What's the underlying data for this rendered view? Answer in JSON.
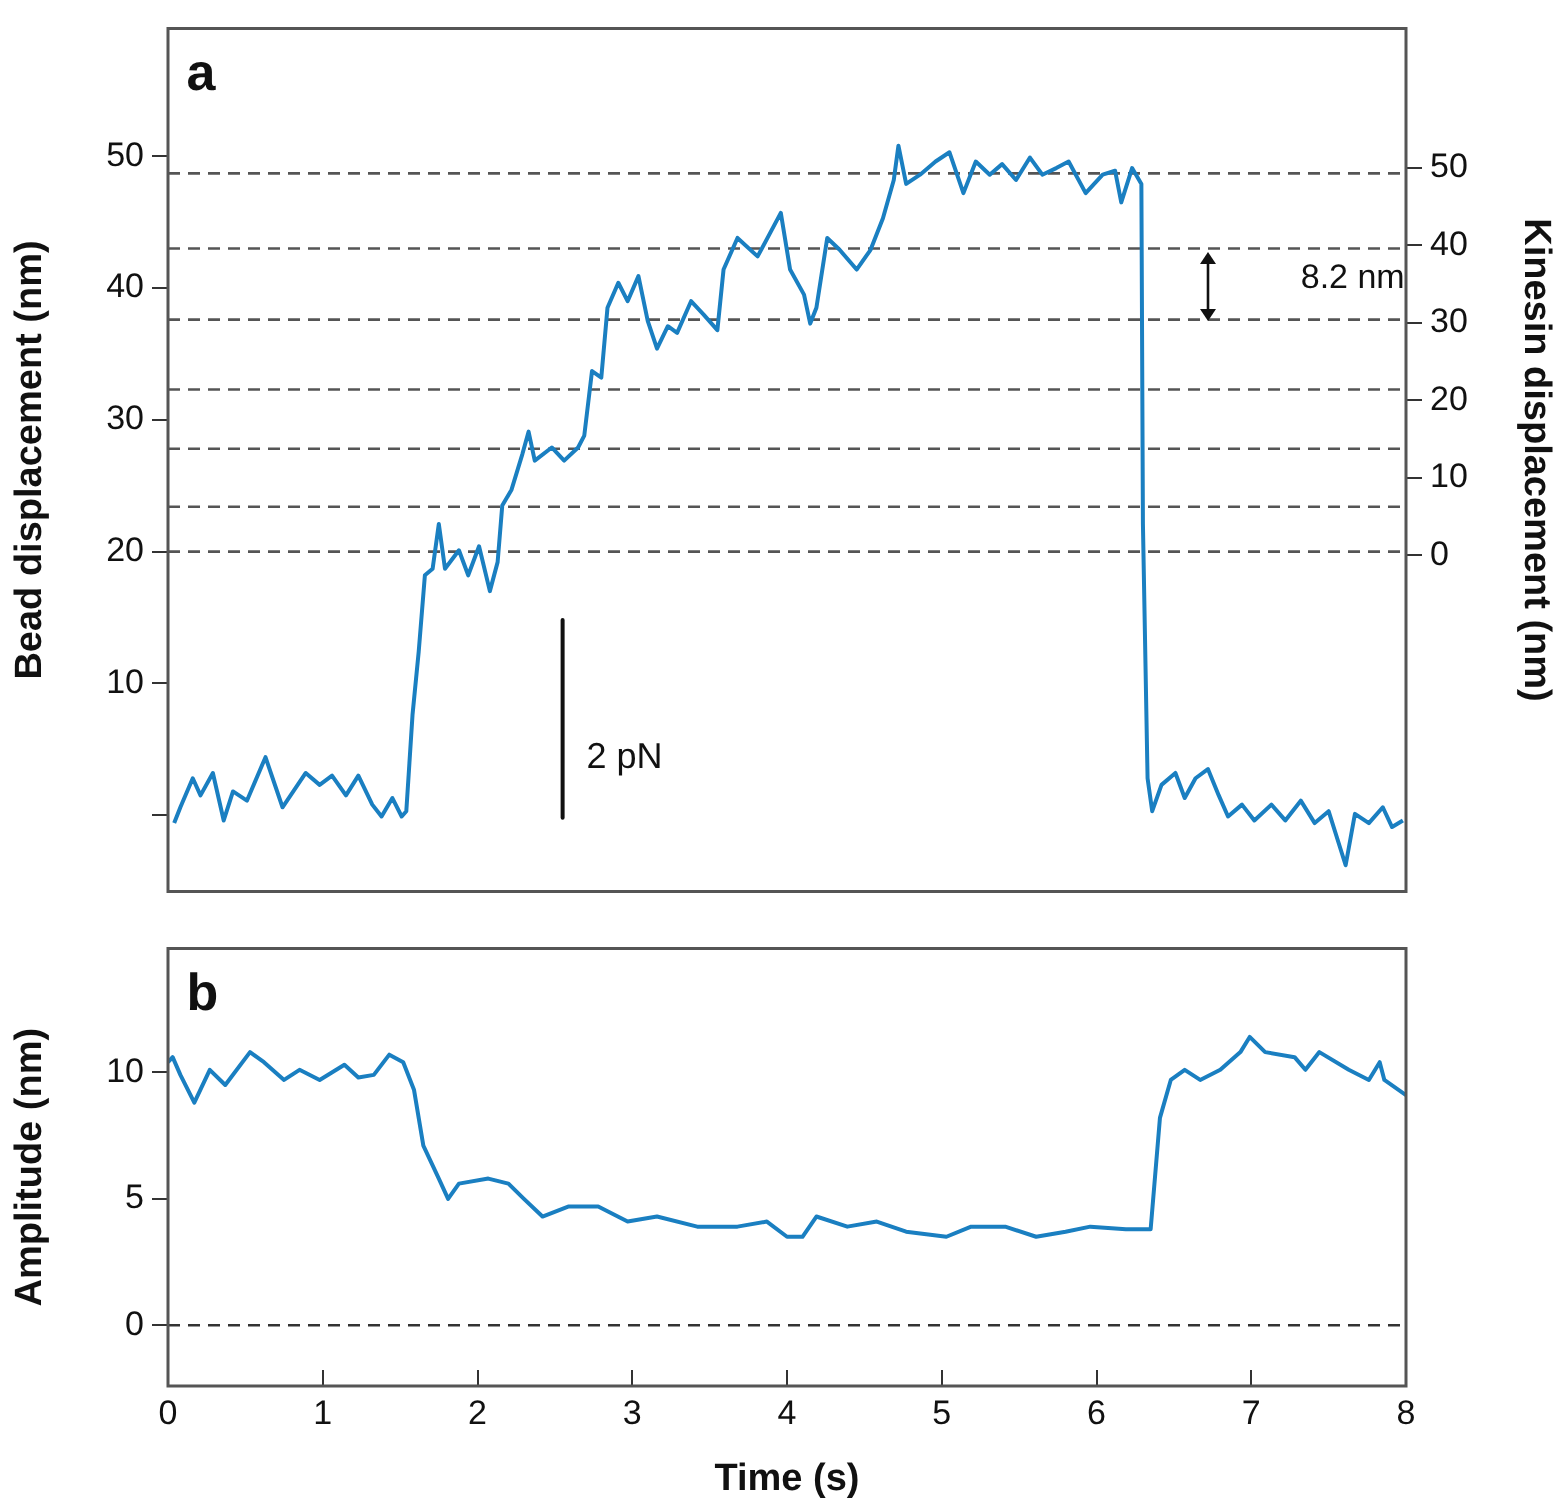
{
  "chart_data": [
    {
      "type": "line",
      "ylabel": "Bead displacement (nm)",
      "y2label": "Kinesin displacement (nm)",
      "xlim": [
        0,
        8
      ],
      "ylim": [
        -5.8,
        59.7
      ],
      "yticks": [
        {
          "value": 0,
          "label": null
        },
        10,
        20,
        30,
        40,
        50
      ],
      "y2lim": [
        -43.4,
        68.0
      ],
      "y2ticks": [
        0,
        10,
        20,
        30,
        40,
        50
      ],
      "tick_labels": "y",
      "grid": false,
      "legend": false,
      "marker": "none",
      "line_style": "solid",
      "annotations": [
        "a",
        "8.2 nm",
        "2 pN"
      ],
      "ref_lines": [
        {
          "axis": "y",
          "value": 20,
          "color": "#555555",
          "line_style": "dashed"
        },
        {
          "axis": "y",
          "value": 23.4,
          "color": "#555555",
          "line_style": "dashed"
        },
        {
          "axis": "y",
          "value": 27.8,
          "color": "#555555",
          "line_style": "dashed"
        },
        {
          "axis": "y",
          "value": 32.3,
          "color": "#555555",
          "line_style": "dashed"
        },
        {
          "axis": "y",
          "value": 37.6,
          "color": "#555555",
          "line_style": "dashed"
        },
        {
          "axis": "y",
          "value": 43.0,
          "color": "#555555",
          "line_style": "dashed"
        },
        {
          "axis": "y",
          "value": 48.7,
          "color": "#555555",
          "line_style": "dashed"
        }
      ],
      "series": [
        {
          "color": "#1a7fc1",
          "x": [
            0.04,
            0.08,
            0.16,
            0.21,
            0.29,
            0.36,
            0.42,
            0.51,
            0.63,
            0.74,
            0.89,
            0.98,
            1.06,
            1.15,
            1.23,
            1.32,
            1.38,
            1.45,
            1.51,
            1.54,
            1.58,
            1.62,
            1.66,
            1.71,
            1.75,
            1.79,
            1.88,
            1.94,
            2.01,
            2.08,
            2.13,
            2.16,
            2.22,
            2.29,
            2.33,
            2.37,
            2.48,
            2.56,
            2.65,
            2.69,
            2.74,
            2.8,
            2.84,
            2.91,
            2.97,
            3.04,
            3.1,
            3.16,
            3.23,
            3.29,
            3.38,
            3.46,
            3.55,
            3.59,
            3.68,
            3.81,
            3.96,
            4.02,
            4.11,
            4.15,
            4.19,
            4.26,
            4.34,
            4.45,
            4.54,
            4.62,
            4.69,
            4.72,
            4.77,
            4.86,
            4.96,
            5.05,
            5.14,
            5.22,
            5.31,
            5.39,
            5.48,
            5.57,
            5.65,
            5.74,
            5.82,
            5.93,
            6.04,
            6.12,
            6.16,
            6.23,
            6.29,
            6.3,
            6.33,
            6.36,
            6.42,
            6.51,
            6.57,
            6.64,
            6.72,
            6.79,
            6.85,
            6.94,
            7.02,
            7.13,
            7.22,
            7.32,
            7.41,
            7.5,
            7.61,
            7.67,
            7.76,
            7.85,
            7.91,
            7.98
          ],
          "values": [
            -0.6,
            0.6,
            2.8,
            1.5,
            3.2,
            -0.4,
            1.8,
            1.1,
            4.4,
            0.6,
            3.2,
            2.3,
            3.0,
            1.5,
            3.0,
            0.8,
            -0.1,
            1.3,
            -0.1,
            0.3,
            7.6,
            12.4,
            18.2,
            18.7,
            22.1,
            18.7,
            20.1,
            18.2,
            20.4,
            17.0,
            19.2,
            23.5,
            24.7,
            27.4,
            29.1,
            26.9,
            27.9,
            26.9,
            27.9,
            28.8,
            33.7,
            33.2,
            38.5,
            40.4,
            39.0,
            40.9,
            37.5,
            35.4,
            37.1,
            36.6,
            39.0,
            38.0,
            36.8,
            41.4,
            43.8,
            42.4,
            45.7,
            41.4,
            39.5,
            37.3,
            38.5,
            43.8,
            42.9,
            41.4,
            42.9,
            45.3,
            48.2,
            50.8,
            47.9,
            48.6,
            49.6,
            50.3,
            47.2,
            49.6,
            48.6,
            49.4,
            48.2,
            49.9,
            48.6,
            49.1,
            49.6,
            47.2,
            48.6,
            48.9,
            46.5,
            49.1,
            47.9,
            22.1,
            2.8,
            0.3,
            2.3,
            3.2,
            1.3,
            2.8,
            3.5,
            1.5,
            -0.1,
            0.8,
            -0.4,
            0.8,
            -0.4,
            1.1,
            -0.6,
            0.3,
            -3.8,
            0.1,
            -0.6,
            0.6,
            -0.9,
            -0.4
          ]
        },
        {
          "type": "line",
          "color": "#111111",
          "x": [
            2.55,
            2.55
          ],
          "values": [
            14.8,
            -0.2
          ]
        }
      ]
    },
    {
      "type": "line",
      "xlabel": "Time (s)",
      "ylabel": "Amplitude (nm)",
      "xlim": [
        0,
        8
      ],
      "xticks": [
        0,
        1,
        2,
        3,
        4,
        5,
        6,
        7,
        8
      ],
      "ylim": [
        -2.4,
        14.9
      ],
      "yticks": [
        0,
        5,
        10
      ],
      "grid": false,
      "legend": false,
      "marker": "none",
      "line_style": "solid",
      "annotations": [
        "b"
      ],
      "ref_lines": [
        {
          "axis": "y",
          "value": 0,
          "color": "#333333",
          "line_style": "dashed"
        }
      ],
      "series": [
        {
          "color": "#1a7fc1",
          "x": [
            0,
            0.03,
            0.08,
            0.17,
            0.27,
            0.37,
            0.53,
            0.62,
            0.75,
            0.85,
            0.98,
            1.14,
            1.23,
            1.33,
            1.43,
            1.52,
            1.59,
            1.65,
            1.75,
            1.81,
            1.88,
            2.07,
            2.2,
            2.3,
            2.42,
            2.59,
            2.78,
            2.97,
            3.16,
            3.42,
            3.68,
            3.87,
            4.0,
            4.1,
            4.19,
            4.39,
            4.58,
            4.77,
            5.03,
            5.19,
            5.41,
            5.61,
            5.8,
            5.96,
            6.19,
            6.35,
            6.41,
            6.48,
            6.57,
            6.67,
            6.8,
            6.93,
            6.99,
            7.09,
            7.28,
            7.35,
            7.44,
            7.63,
            7.76,
            7.83,
            7.86,
            8.0
          ],
          "values": [
            10.4,
            10.6,
            9.9,
            8.8,
            10.1,
            9.5,
            10.8,
            10.4,
            9.7,
            10.1,
            9.7,
            10.3,
            9.8,
            9.9,
            10.7,
            10.4,
            9.3,
            7.1,
            5.8,
            5.0,
            5.6,
            5.8,
            5.6,
            5.0,
            4.3,
            4.7,
            4.7,
            4.1,
            4.3,
            3.9,
            3.9,
            4.1,
            3.5,
            3.5,
            4.3,
            3.9,
            4.1,
            3.7,
            3.5,
            3.9,
            3.9,
            3.5,
            3.7,
            3.9,
            3.8,
            3.8,
            8.2,
            9.7,
            10.1,
            9.7,
            10.1,
            10.8,
            11.4,
            10.8,
            10.6,
            10.1,
            10.8,
            10.1,
            9.7,
            10.4,
            9.7,
            9.1
          ]
        }
      ]
    }
  ]
}
